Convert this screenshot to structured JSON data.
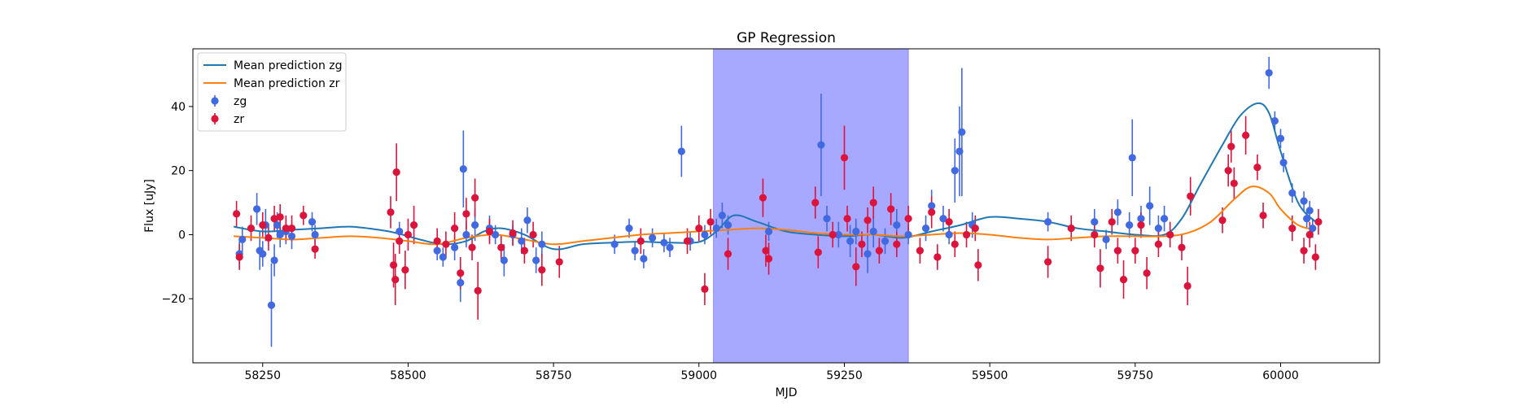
{
  "chart_data": {
    "type": "scatter",
    "title": "GP Regression",
    "xlabel": "MJD",
    "ylabel": "Flux [uJy]",
    "xlim": [
      58130,
      60170
    ],
    "ylim": [
      -40,
      58
    ],
    "xticks": [
      58250,
      58500,
      58750,
      59000,
      59250,
      59500,
      59750,
      60000
    ],
    "yticks": [
      -20,
      0,
      20,
      40
    ],
    "grid": false,
    "legend_position": "upper-left",
    "shaded_region": {
      "x_start": 59025,
      "x_end": 59360,
      "color": "#a7a8ff"
    },
    "legend": [
      {
        "label": "Mean prediction zg",
        "kind": "line",
        "color": "#1f77b4"
      },
      {
        "label": "Mean prediction zr",
        "kind": "line",
        "color": "#ff7f0e"
      },
      {
        "label": "zg",
        "kind": "errorbar",
        "color": "#4169e1"
      },
      {
        "label": "zr",
        "kind": "errorbar",
        "color": "#dc143c"
      }
    ],
    "lines": [
      {
        "name": "Mean prediction zg",
        "color": "#1f77b4",
        "x": [
          58200,
          58250,
          58300,
          58350,
          58400,
          58450,
          58480,
          58520,
          58560,
          58600,
          58630,
          58660,
          58700,
          58750,
          58800,
          58850,
          58900,
          58950,
          59000,
          59030,
          59060,
          59100,
          59150,
          59200,
          59250,
          59300,
          59350,
          59400,
          59450,
          59500,
          59550,
          59600,
          59650,
          59700,
          59750,
          59800,
          59830,
          59860,
          59900,
          59930,
          59960,
          59980,
          60000,
          60030,
          60060
        ],
        "y": [
          2.5,
          1,
          1.5,
          2,
          2.5,
          1.5,
          0.5,
          -1.5,
          -3,
          -2,
          1,
          2,
          0,
          -4.5,
          -3,
          -2.5,
          -2.2,
          -2.5,
          -2.3,
          1,
          6,
          4,
          1,
          0,
          -0.5,
          0,
          -1,
          1,
          3,
          5.5,
          5,
          4,
          2,
          1,
          0,
          0,
          5,
          15,
          28,
          37,
          41,
          38,
          26,
          10,
          4
        ]
      },
      {
        "name": "Mean prediction zr",
        "color": "#ff7f0e",
        "x": [
          58200,
          58250,
          58300,
          58350,
          58400,
          58450,
          58500,
          58550,
          58600,
          58650,
          58700,
          58750,
          58800,
          58850,
          58900,
          58950,
          59000,
          59050,
          59100,
          59150,
          59200,
          59250,
          59300,
          59350,
          59400,
          59450,
          59500,
          59550,
          59600,
          59650,
          59700,
          59750,
          59800,
          59840,
          59880,
          59920,
          59950,
          59980,
          60000,
          60030,
          60060
        ],
        "y": [
          -0.5,
          -1,
          -1.5,
          -1,
          -0.5,
          -1,
          -2,
          -3,
          -1,
          0,
          -1.5,
          -3,
          -2,
          -1,
          0,
          0.5,
          1,
          1.5,
          2,
          1.5,
          0.5,
          0,
          0,
          -0.5,
          0,
          0.5,
          0,
          -1,
          -1.5,
          -1,
          -0.5,
          -0.5,
          -0.5,
          0.5,
          4,
          11,
          15,
          13,
          8,
          3,
          1.5
        ]
      }
    ],
    "series": [
      {
        "name": "zg",
        "color": "#4169e1",
        "points": [
          [
            58210,
            -6,
            4
          ],
          [
            58215,
            -1.5,
            4
          ],
          [
            58240,
            8,
            5
          ],
          [
            58245,
            -5,
            6
          ],
          [
            58250,
            -6,
            4
          ],
          [
            58255,
            3,
            5
          ],
          [
            58265,
            -22,
            13
          ],
          [
            58270,
            -8,
            5
          ],
          [
            58275,
            3,
            4
          ],
          [
            58280,
            0,
            4
          ],
          [
            58290,
            1,
            4
          ],
          [
            58300,
            -0.5,
            4
          ],
          [
            58335,
            4,
            3
          ],
          [
            58340,
            0,
            3
          ],
          [
            58485,
            1,
            3
          ],
          [
            58550,
            -5,
            3
          ],
          [
            58560,
            -7,
            3
          ],
          [
            58580,
            -4,
            4
          ],
          [
            58590,
            -15,
            6
          ],
          [
            58595,
            20.5,
            12
          ],
          [
            58600,
            0,
            4
          ],
          [
            58615,
            3,
            5
          ],
          [
            58640,
            2,
            4
          ],
          [
            58650,
            0,
            3
          ],
          [
            58665,
            -8,
            5
          ],
          [
            58680,
            0,
            3
          ],
          [
            58695,
            -2,
            4
          ],
          [
            58705,
            4.5,
            4
          ],
          [
            58720,
            -8,
            4
          ],
          [
            58730,
            -3,
            4
          ],
          [
            58855,
            -3,
            3
          ],
          [
            58880,
            2,
            3
          ],
          [
            58890,
            -5,
            3
          ],
          [
            58905,
            -7.5,
            3
          ],
          [
            58920,
            -1,
            3
          ],
          [
            58940,
            -2.5,
            3
          ],
          [
            58950,
            -4,
            3
          ],
          [
            58970,
            26,
            8
          ],
          [
            58985,
            -2,
            3
          ],
          [
            59010,
            0,
            3
          ],
          [
            59030,
            2,
            3
          ],
          [
            59040,
            6,
            4
          ],
          [
            59050,
            3,
            3
          ],
          [
            59120,
            1,
            3
          ],
          [
            59210,
            28,
            16
          ],
          [
            59220,
            5,
            4
          ],
          [
            59240,
            0,
            4
          ],
          [
            59260,
            -2,
            5
          ],
          [
            59270,
            1,
            4
          ],
          [
            59290,
            -6,
            6
          ],
          [
            59300,
            1,
            5
          ],
          [
            59320,
            -2,
            4
          ],
          [
            59340,
            3,
            5
          ],
          [
            59360,
            0,
            3
          ],
          [
            59390,
            2,
            4
          ],
          [
            59400,
            9,
            5
          ],
          [
            59420,
            5,
            4
          ],
          [
            59430,
            0,
            3
          ],
          [
            59440,
            20,
            10
          ],
          [
            59448,
            26,
            14
          ],
          [
            59452,
            32,
            20
          ],
          [
            59470,
            3,
            4
          ],
          [
            59600,
            4,
            3
          ],
          [
            59680,
            4,
            4
          ],
          [
            59700,
            -1.5,
            3
          ],
          [
            59720,
            7,
            4
          ],
          [
            59740,
            3,
            4
          ],
          [
            59745,
            24,
            12
          ],
          [
            59760,
            5,
            4
          ],
          [
            59775,
            9,
            6
          ],
          [
            59790,
            2,
            4
          ],
          [
            59800,
            5,
            4
          ],
          [
            59980,
            50.5,
            5
          ],
          [
            59990,
            35.5,
            3
          ],
          [
            60000,
            30,
            3
          ],
          [
            60005,
            22.5,
            3
          ],
          [
            60020,
            13,
            3
          ],
          [
            60040,
            10.5,
            3
          ],
          [
            60045,
            5,
            3
          ],
          [
            60050,
            7.5,
            3
          ],
          [
            60055,
            2,
            3
          ]
        ]
      },
      {
        "name": "zr",
        "color": "#dc143c",
        "points": [
          [
            58205,
            6.5,
            4
          ],
          [
            58210,
            -7,
            4
          ],
          [
            58230,
            2,
            4
          ],
          [
            58250,
            3,
            4
          ],
          [
            58260,
            -1,
            4
          ],
          [
            58270,
            5,
            4
          ],
          [
            58280,
            5.5,
            4
          ],
          [
            58290,
            2,
            4
          ],
          [
            58300,
            2,
            4
          ],
          [
            58320,
            6,
            3
          ],
          [
            58340,
            -4.5,
            3
          ],
          [
            58470,
            7,
            5
          ],
          [
            58475,
            -9.5,
            7
          ],
          [
            58478,
            -14,
            8
          ],
          [
            58480,
            19.5,
            9
          ],
          [
            58485,
            -2,
            4
          ],
          [
            58495,
            -11,
            6
          ],
          [
            58500,
            0,
            5
          ],
          [
            58510,
            3,
            6
          ],
          [
            58550,
            -2,
            4
          ],
          [
            58565,
            -3,
            4
          ],
          [
            58580,
            2,
            5
          ],
          [
            58590,
            -12,
            5
          ],
          [
            58600,
            6.5,
            5
          ],
          [
            58610,
            -4,
            4
          ],
          [
            58615,
            11.5,
            6
          ],
          [
            58620,
            -17.5,
            9
          ],
          [
            58640,
            1,
            4
          ],
          [
            58660,
            -4,
            4
          ],
          [
            58680,
            0.5,
            4
          ],
          [
            58700,
            -5,
            4
          ],
          [
            58715,
            0,
            4
          ],
          [
            58730,
            -11,
            5
          ],
          [
            58760,
            -8.5,
            5
          ],
          [
            58900,
            -2,
            4
          ],
          [
            58980,
            -2,
            4
          ],
          [
            59000,
            2,
            4
          ],
          [
            59010,
            -17,
            5
          ],
          [
            59020,
            4,
            4
          ],
          [
            59050,
            -6,
            5
          ],
          [
            59110,
            11.5,
            6
          ],
          [
            59115,
            -5,
            5
          ],
          [
            59120,
            -7.5,
            5
          ],
          [
            59200,
            10,
            5
          ],
          [
            59205,
            -5.5,
            5
          ],
          [
            59230,
            0,
            4
          ],
          [
            59250,
            24,
            10
          ],
          [
            59255,
            5,
            4
          ],
          [
            59270,
            -10,
            6
          ],
          [
            59280,
            -3,
            4
          ],
          [
            59290,
            4.5,
            4
          ],
          [
            59300,
            10,
            5
          ],
          [
            59310,
            -5,
            4
          ],
          [
            59330,
            8,
            5
          ],
          [
            59340,
            -3,
            4
          ],
          [
            59360,
            5,
            4
          ],
          [
            59380,
            -5,
            4
          ],
          [
            59400,
            7,
            5
          ],
          [
            59410,
            -7,
            4
          ],
          [
            59430,
            4,
            4
          ],
          [
            59440,
            -3,
            4
          ],
          [
            59460,
            0,
            4
          ],
          [
            59475,
            2,
            4
          ],
          [
            59480,
            -9.5,
            5
          ],
          [
            59600,
            -8.5,
            5
          ],
          [
            59640,
            2,
            4
          ],
          [
            59680,
            0,
            4
          ],
          [
            59690,
            -10.5,
            6
          ],
          [
            59710,
            4,
            4
          ],
          [
            59720,
            -5,
            4
          ],
          [
            59730,
            -14,
            6
          ],
          [
            59750,
            -5,
            4
          ],
          [
            59760,
            3,
            4
          ],
          [
            59770,
            -12,
            5
          ],
          [
            59790,
            -3,
            4
          ],
          [
            59810,
            0,
            4
          ],
          [
            59830,
            -4,
            4
          ],
          [
            59840,
            -16,
            6
          ],
          [
            59845,
            12,
            6
          ],
          [
            59900,
            4.5,
            4
          ],
          [
            59910,
            20,
            5
          ],
          [
            59915,
            27.5,
            5
          ],
          [
            59920,
            16,
            5
          ],
          [
            59940,
            31,
            6
          ],
          [
            59960,
            21,
            4
          ],
          [
            59970,
            6,
            4
          ],
          [
            60020,
            2,
            4
          ],
          [
            60040,
            -5,
            4
          ],
          [
            60050,
            0,
            4
          ],
          [
            60060,
            -7,
            4
          ],
          [
            60065,
            4,
            4
          ]
        ]
      }
    ]
  }
}
